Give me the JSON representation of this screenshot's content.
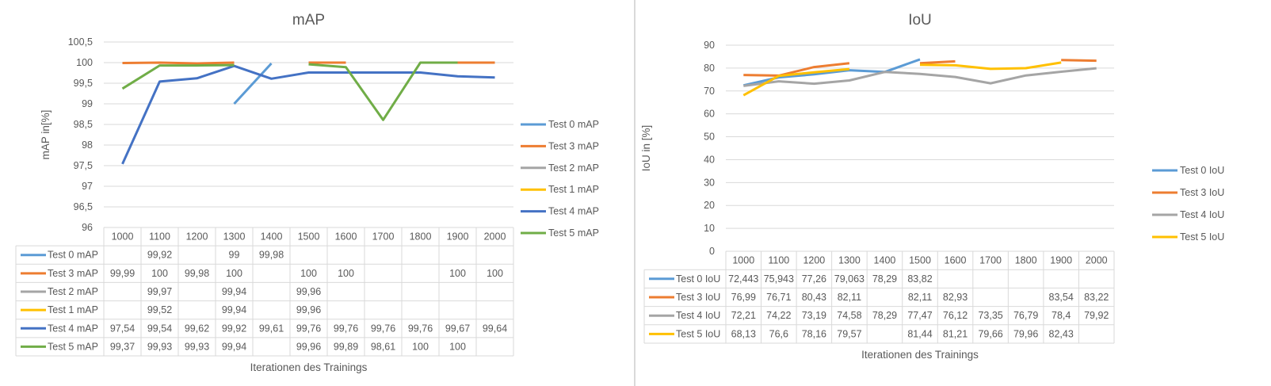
{
  "chart_data": [
    {
      "type": "line",
      "title": "mAP",
      "xlabel": "Iterationen des Trainings",
      "ylabel": "mAP in[%]",
      "ylim": [
        96,
        100.5
      ],
      "ytick_step": 0.5,
      "yticks": [
        "96",
        "96,5",
        "97",
        "97,5",
        "98",
        "98,5",
        "99",
        "99,5",
        "100",
        "100,5"
      ],
      "categories": [
        "1000",
        "1100",
        "1200",
        "1300",
        "1400",
        "1500",
        "1600",
        "1700",
        "1800",
        "1900",
        "2000"
      ],
      "legend_position": "right",
      "grid": true,
      "series": [
        {
          "name": "Test 0 mAP",
          "color": "#5B9BD5",
          "values": [
            null,
            99.92,
            null,
            99,
            99.98,
            null,
            null,
            null,
            null,
            null,
            null
          ],
          "labels": [
            "",
            "99,92",
            "",
            "99",
            "99,98",
            "",
            "",
            "",
            "",
            "",
            ""
          ]
        },
        {
          "name": "Test 3 mAP",
          "color": "#ED7D31",
          "values": [
            99.99,
            100,
            99.98,
            100,
            null,
            100,
            100,
            null,
            null,
            100,
            100
          ],
          "labels": [
            "99,99",
            "100",
            "99,98",
            "100",
            "",
            "100",
            "100",
            "",
            "",
            "100",
            "100"
          ]
        },
        {
          "name": "Test 2 mAP",
          "color": "#A5A5A5",
          "values": [
            null,
            99.97,
            null,
            99.94,
            null,
            99.96,
            null,
            null,
            null,
            null,
            null
          ],
          "labels": [
            "",
            "99,97",
            "",
            "99,94",
            "",
            "99,96",
            "",
            "",
            "",
            "",
            ""
          ]
        },
        {
          "name": "Test 1 mAP",
          "color": "#FFC000",
          "values": [
            null,
            99.52,
            null,
            99.94,
            null,
            99.96,
            null,
            null,
            null,
            null,
            null
          ],
          "labels": [
            "",
            "99,52",
            "",
            "99,94",
            "",
            "99,96",
            "",
            "",
            "",
            "",
            ""
          ]
        },
        {
          "name": "Test 4 mAP",
          "color": "#4472C4",
          "values": [
            97.54,
            99.54,
            99.62,
            99.92,
            99.61,
            99.76,
            99.76,
            99.76,
            99.76,
            99.67,
            99.64
          ],
          "labels": [
            "97,54",
            "99,54",
            "99,62",
            "99,92",
            "99,61",
            "99,76",
            "99,76",
            "99,76",
            "99,76",
            "99,67",
            "99,64"
          ]
        },
        {
          "name": "Test 5 mAP",
          "color": "#70AD47",
          "values": [
            99.37,
            99.93,
            99.93,
            99.94,
            null,
            99.96,
            99.89,
            98.61,
            100,
            100,
            null
          ],
          "labels": [
            "99,37",
            "99,93",
            "99,93",
            "99,94",
            "",
            "99,96",
            "99,89",
            "98,61",
            "100",
            "100",
            ""
          ]
        }
      ]
    },
    {
      "type": "line",
      "title": "IoU",
      "xlabel": "Iterationen des Trainings",
      "ylabel": "IoU in [%]",
      "ylim": [
        0,
        90
      ],
      "ytick_step": 10,
      "yticks": [
        "0",
        "10",
        "20",
        "30",
        "40",
        "50",
        "60",
        "70",
        "80",
        "90"
      ],
      "categories": [
        "1000",
        "1100",
        "1200",
        "1300",
        "1400",
        "1500",
        "1600",
        "1700",
        "1800",
        "1900",
        "2000"
      ],
      "legend_position": "right",
      "grid": true,
      "series": [
        {
          "name": "Test 0 IoU",
          "color": "#5B9BD5",
          "values": [
            72.443,
            75.943,
            77.26,
            79.063,
            78.29,
            83.82,
            null,
            null,
            null,
            null,
            null
          ],
          "labels": [
            "72,443",
            "75,943",
            "77,26",
            "79,063",
            "78,29",
            "83,82",
            "",
            "",
            "",
            "",
            ""
          ]
        },
        {
          "name": "Test 3 IoU",
          "color": "#ED7D31",
          "values": [
            76.99,
            76.71,
            80.43,
            82.11,
            null,
            82.11,
            82.93,
            null,
            null,
            83.54,
            83.22
          ],
          "labels": [
            "76,99",
            "76,71",
            "80,43",
            "82,11",
            "",
            "82,11",
            "82,93",
            "",
            "",
            "83,54",
            "83,22"
          ]
        },
        {
          "name": "Test 4 IoU",
          "color": "#A5A5A5",
          "values": [
            72.21,
            74.22,
            73.19,
            74.58,
            78.29,
            77.47,
            76.12,
            73.35,
            76.79,
            78.4,
            79.92
          ],
          "labels": [
            "72,21",
            "74,22",
            "73,19",
            "74,58",
            "78,29",
            "77,47",
            "76,12",
            "73,35",
            "76,79",
            "78,4",
            "79,92"
          ]
        },
        {
          "name": "Test 5 IoU",
          "color": "#FFC000",
          "values": [
            68.13,
            76.6,
            78.16,
            79.57,
            null,
            81.44,
            81.21,
            79.66,
            79.96,
            82.43,
            null
          ],
          "labels": [
            "68,13",
            "76,6",
            "78,16",
            "79,57",
            "",
            "81,44",
            "81,21",
            "79,66",
            "79,96",
            "82,43",
            ""
          ]
        }
      ]
    }
  ]
}
